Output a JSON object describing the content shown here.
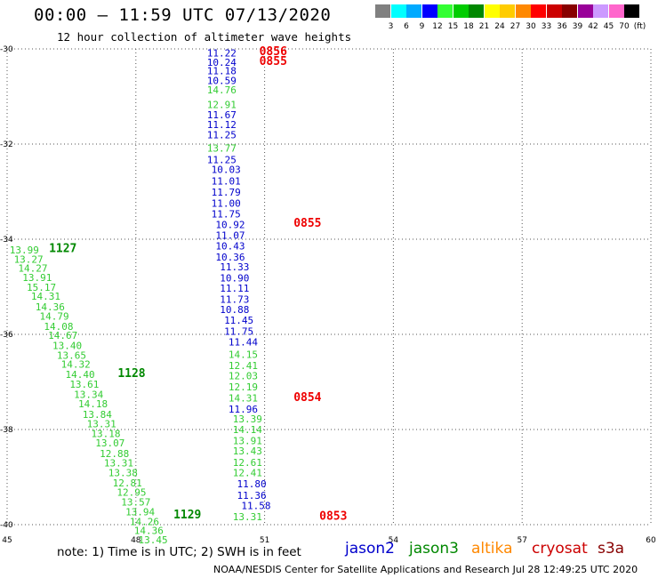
{
  "header": {
    "title": "00:00 – 11:59 UTC 07/13/2020",
    "subtitle": "12 hour collection of altimeter wave heights"
  },
  "color_scale": {
    "labels": [
      "3",
      "6",
      "9",
      "12",
      "15",
      "18",
      "21",
      "24",
      "27",
      "30",
      "33",
      "36",
      "39",
      "42",
      "45",
      "70",
      "(ft)"
    ],
    "colors": [
      "#808080",
      "#00ffff",
      "#00aaff",
      "#0000ff",
      "#33ff33",
      "#00cc00",
      "#008800",
      "#ffff00",
      "#ffcc00",
      "#ff8800",
      "#ff0000",
      "#cc0000",
      "#880000",
      "#990099",
      "#cc99ff",
      "#ff66cc",
      "#000000"
    ]
  },
  "footer": {
    "note": "note:  1) Time is in UTC;  2) SWH is in feet",
    "credit": "NOAA/NESDIS Center for Satellite Applications and Research     Jul 28 12:49:25 UTC 2020"
  },
  "missions": [
    {
      "name": "jason2",
      "color": "#0000cc"
    },
    {
      "name": "jason3",
      "color": "#008800"
    },
    {
      "name": "altika",
      "color": "#ff8800"
    },
    {
      "name": "cryosat",
      "color": "#cc0000"
    },
    {
      "name": "s3a",
      "color": "#880000"
    }
  ],
  "chart_data": {
    "type": "scatter",
    "xlim": [
      45,
      60
    ],
    "ylim": [
      -40,
      -30
    ],
    "x_ticks": [
      45,
      48,
      51,
      54,
      57,
      60
    ],
    "y_ticks": [
      -30,
      -32,
      -34,
      -36,
      -38,
      -40
    ],
    "grid": true,
    "series": [
      {
        "name": "jason2",
        "color": "#0000cc",
        "points": [
          {
            "x": 50.0,
            "y": -30.08,
            "label": "11.22"
          },
          {
            "x": 50.0,
            "y": -30.28,
            "label": "10.24"
          },
          {
            "x": 50.0,
            "y": -30.46,
            "label": "11.18"
          },
          {
            "x": 50.0,
            "y": -30.66,
            "label": "10.59"
          },
          {
            "x": 50.0,
            "y": -31.38,
            "label": "11.67"
          },
          {
            "x": 50.0,
            "y": -31.59,
            "label": "11.12"
          },
          {
            "x": 50.0,
            "y": -31.8,
            "label": "11.25"
          },
          {
            "x": 50.0,
            "y": -32.33,
            "label": "11.25"
          },
          {
            "x": 50.1,
            "y": -32.53,
            "label": "10.03"
          },
          {
            "x": 50.1,
            "y": -32.78,
            "label": "11.01"
          },
          {
            "x": 50.1,
            "y": -33.01,
            "label": "11.79"
          },
          {
            "x": 50.1,
            "y": -33.24,
            "label": "11.00"
          },
          {
            "x": 50.1,
            "y": -33.47,
            "label": "11.75"
          },
          {
            "x": 50.2,
            "y": -33.69,
            "label": "10.92"
          },
          {
            "x": 50.2,
            "y": -33.92,
            "label": "11.07"
          },
          {
            "x": 50.2,
            "y": -34.14,
            "label": "10.43"
          },
          {
            "x": 50.2,
            "y": -34.37,
            "label": "10.36"
          },
          {
            "x": 50.3,
            "y": -34.58,
            "label": "11.33"
          },
          {
            "x": 50.3,
            "y": -34.81,
            "label": "10.90"
          },
          {
            "x": 50.3,
            "y": -35.03,
            "label": "11.11"
          },
          {
            "x": 50.3,
            "y": -35.26,
            "label": "11.73"
          },
          {
            "x": 50.3,
            "y": -35.48,
            "label": "10.88"
          },
          {
            "x": 50.4,
            "y": -35.7,
            "label": "11.45"
          },
          {
            "x": 50.4,
            "y": -35.93,
            "label": "11.75"
          },
          {
            "x": 50.5,
            "y": -36.16,
            "label": "11.44"
          },
          {
            "x": 50.5,
            "y": -37.57,
            "label": "11.96"
          },
          {
            "x": 50.7,
            "y": -39.14,
            "label": "11.80"
          },
          {
            "x": 50.7,
            "y": -39.38,
            "label": "11.36"
          },
          {
            "x": 50.8,
            "y": -39.6,
            "label": "11.58"
          }
        ]
      },
      {
        "name": "jason3",
        "color": "#33cc33",
        "points": [
          {
            "x": 50.0,
            "y": -30.86,
            "label": "14.76"
          },
          {
            "x": 50.0,
            "y": -31.17,
            "label": "12.91"
          },
          {
            "x": 50.0,
            "y": -32.08,
            "label": "13.77"
          },
          {
            "x": 50.5,
            "y": -36.42,
            "label": "14.15"
          },
          {
            "x": 50.5,
            "y": -36.65,
            "label": "12.41"
          },
          {
            "x": 50.5,
            "y": -36.87,
            "label": "12.03"
          },
          {
            "x": 50.5,
            "y": -37.1,
            "label": "12.19"
          },
          {
            "x": 50.5,
            "y": -37.34,
            "label": "14.31"
          },
          {
            "x": 50.6,
            "y": -37.78,
            "label": "13.39"
          },
          {
            "x": 50.6,
            "y": -38.0,
            "label": "14.14"
          },
          {
            "x": 50.6,
            "y": -38.23,
            "label": "13.91"
          },
          {
            "x": 50.6,
            "y": -38.45,
            "label": "13.43"
          },
          {
            "x": 50.6,
            "y": -38.69,
            "label": "12.61"
          },
          {
            "x": 50.6,
            "y": -38.91,
            "label": "12.41"
          },
          {
            "x": 50.6,
            "y": -39.83,
            "label": "13.31"
          },
          {
            "x": 45.4,
            "y": -34.22,
            "label": "13.99"
          },
          {
            "x": 45.5,
            "y": -34.42,
            "label": "13.27"
          },
          {
            "x": 45.6,
            "y": -34.61,
            "label": "14.27"
          },
          {
            "x": 45.7,
            "y": -34.8,
            "label": "13.91"
          },
          {
            "x": 45.8,
            "y": -35.01,
            "label": "15.17"
          },
          {
            "x": 45.9,
            "y": -35.2,
            "label": "14.31"
          },
          {
            "x": 46.0,
            "y": -35.42,
            "label": "14.36"
          },
          {
            "x": 46.1,
            "y": -35.62,
            "label": "14.79"
          },
          {
            "x": 46.2,
            "y": -35.83,
            "label": "14.08"
          },
          {
            "x": 46.3,
            "y": -36.02,
            "label": "14.67"
          },
          {
            "x": 46.4,
            "y": -36.23,
            "label": "13.40"
          },
          {
            "x": 46.5,
            "y": -36.44,
            "label": "13.65"
          },
          {
            "x": 46.6,
            "y": -36.63,
            "label": "14.32"
          },
          {
            "x": 46.7,
            "y": -36.84,
            "label": "14.40"
          },
          {
            "x": 46.8,
            "y": -37.05,
            "label": "13.61"
          },
          {
            "x": 46.9,
            "y": -37.26,
            "label": "13.34"
          },
          {
            "x": 47.0,
            "y": -37.46,
            "label": "14.18"
          },
          {
            "x": 47.1,
            "y": -37.68,
            "label": "13.84"
          },
          {
            "x": 47.2,
            "y": -37.88,
            "label": "13.31"
          },
          {
            "x": 47.3,
            "y": -38.08,
            "label": "13.18"
          },
          {
            "x": 47.4,
            "y": -38.28,
            "label": "13.07"
          },
          {
            "x": 47.5,
            "y": -38.5,
            "label": "12.88"
          },
          {
            "x": 47.6,
            "y": -38.7,
            "label": "13.31"
          },
          {
            "x": 47.7,
            "y": -38.91,
            "label": "13.38"
          },
          {
            "x": 47.8,
            "y": -39.12,
            "label": "12.81"
          },
          {
            "x": 47.9,
            "y": -39.32,
            "label": "12.95"
          },
          {
            "x": 48.0,
            "y": -39.52,
            "label": "13.57"
          },
          {
            "x": 48.1,
            "y": -39.73,
            "label": "13.94"
          },
          {
            "x": 48.2,
            "y": -39.93,
            "label": "14.26"
          },
          {
            "x": 48.3,
            "y": -40.12,
            "label": "14.36"
          },
          {
            "x": 48.4,
            "y": -40.32,
            "label": "13.45"
          }
        ]
      },
      {
        "name": "jason3 time",
        "color": "#008800",
        "points": [
          {
            "x": 46.3,
            "y": -34.2,
            "label": "1127"
          },
          {
            "x": 47.9,
            "y": -36.82,
            "label": "1128"
          },
          {
            "x": 49.2,
            "y": -39.79,
            "label": "1129"
          }
        ]
      },
      {
        "name": "cryosat time",
        "color": "#ee0000",
        "points": [
          {
            "x": 51.2,
            "y": -30.06,
            "label": "0856"
          },
          {
            "x": 51.2,
            "y": -30.26,
            "label": "0855"
          },
          {
            "x": 52.0,
            "y": -33.66,
            "label": "0855"
          },
          {
            "x": 52.0,
            "y": -37.33,
            "label": "0854"
          },
          {
            "x": 52.6,
            "y": -39.82,
            "label": "0853"
          }
        ]
      }
    ]
  }
}
